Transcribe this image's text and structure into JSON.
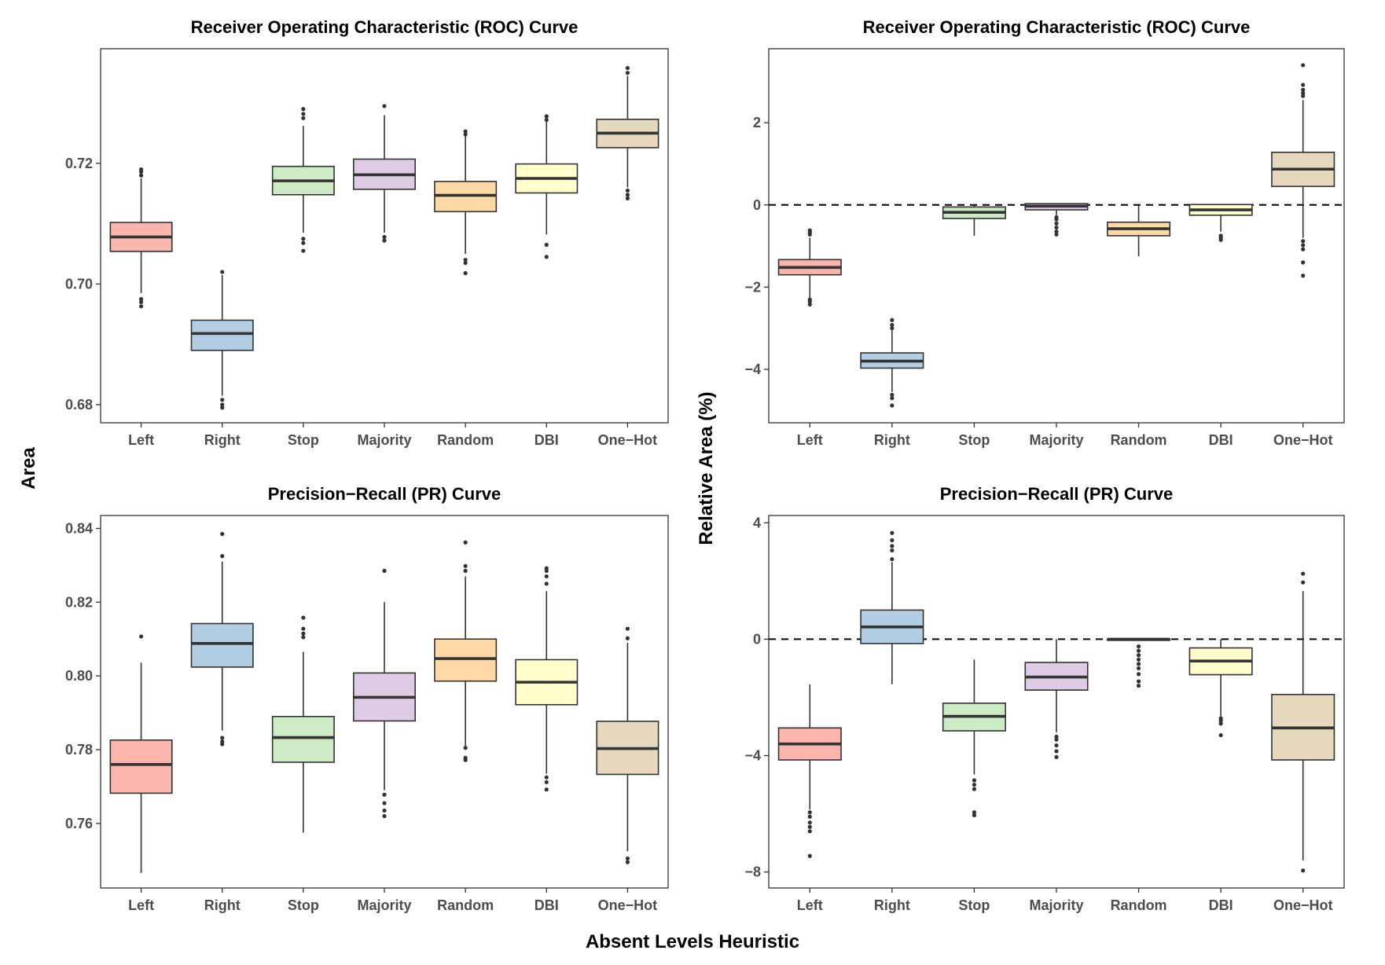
{
  "figure": {
    "ylabel_left": "Area",
    "ylabel_right": "Relative Area (%)",
    "xlabel": "Absent Levels Heuristic"
  },
  "chart_data": [
    {
      "type": "box",
      "title": "Receiver Operating Characteristic (ROC) Curve",
      "categories": [
        "Left",
        "Right",
        "Stop",
        "Majority",
        "Random",
        "DBI",
        "One−Hot"
      ],
      "colors": [
        "#fbb4ae",
        "#b3cde3",
        "#ccebc5",
        "#decbe4",
        "#fed9a6",
        "#ffffcc",
        "#e5d8bd"
      ],
      "ylim": [
        0.677,
        0.739
      ],
      "yticks": [
        0.68,
        0.7,
        0.72
      ],
      "ytick_labels": [
        "0.68",
        "0.70",
        "0.72"
      ],
      "reference_line": null,
      "boxes": [
        {
          "q1": 0.7054,
          "median": 0.7078,
          "q3": 0.7102,
          "whisker_low": 0.6985,
          "whisker_high": 0.7175,
          "outliers": [
            0.6963,
            0.697,
            0.6975,
            0.718,
            0.7186,
            0.719
          ]
        },
        {
          "q1": 0.689,
          "median": 0.6918,
          "q3": 0.694,
          "whisker_low": 0.6815,
          "whisker_high": 0.7015,
          "outliers": [
            0.6795,
            0.68,
            0.6808,
            0.702
          ]
        },
        {
          "q1": 0.7148,
          "median": 0.7171,
          "q3": 0.7195,
          "whisker_low": 0.7085,
          "whisker_high": 0.7262,
          "outliers": [
            0.7055,
            0.7068,
            0.7075,
            0.7275,
            0.7282,
            0.729
          ]
        },
        {
          "q1": 0.7157,
          "median": 0.7181,
          "q3": 0.7207,
          "whisker_low": 0.7085,
          "whisker_high": 0.728,
          "outliers": [
            0.7072,
            0.7078,
            0.7295
          ]
        },
        {
          "q1": 0.712,
          "median": 0.7147,
          "q3": 0.717,
          "whisker_low": 0.705,
          "whisker_high": 0.7245,
          "outliers": [
            0.7018,
            0.7035,
            0.704,
            0.7248,
            0.7253
          ]
        },
        {
          "q1": 0.7151,
          "median": 0.7175,
          "q3": 0.7199,
          "whisker_low": 0.7082,
          "whisker_high": 0.727,
          "outliers": [
            0.7045,
            0.7065,
            0.7272,
            0.7278
          ]
        },
        {
          "q1": 0.7226,
          "median": 0.725,
          "q3": 0.7273,
          "whisker_low": 0.716,
          "whisker_high": 0.7345,
          "outliers": [
            0.7142,
            0.7148,
            0.7155,
            0.735,
            0.7358
          ]
        }
      ]
    },
    {
      "type": "box",
      "title": "Receiver Operating Characteristic (ROC) Curve",
      "categories": [
        "Left",
        "Right",
        "Stop",
        "Majority",
        "Random",
        "DBI",
        "One−Hot"
      ],
      "colors": [
        "#fbb4ae",
        "#b3cde3",
        "#ccebc5",
        "#decbe4",
        "#fed9a6",
        "#ffffcc",
        "#e5d8bd"
      ],
      "ylim": [
        -5.3,
        3.8
      ],
      "yticks": [
        -4,
        -2,
        0,
        2
      ],
      "ytick_labels": [
        "−4",
        "−2",
        "0",
        "2"
      ],
      "reference_line": 0,
      "boxes": [
        {
          "q1": -1.7,
          "median": -1.52,
          "q3": -1.33,
          "whisker_low": -2.25,
          "whisker_high": -0.8,
          "outliers": [
            -2.42,
            -2.35,
            -2.3,
            -0.72,
            -0.67,
            -0.62
          ]
        },
        {
          "q1": -3.97,
          "median": -3.8,
          "q3": -3.6,
          "whisker_low": -4.55,
          "whisker_high": -3.05,
          "outliers": [
            -4.88,
            -4.7,
            -4.62,
            -3.0,
            -2.92,
            -2.8
          ]
        },
        {
          "q1": -0.33,
          "median": -0.18,
          "q3": -0.05,
          "whisker_low": -0.75,
          "whisker_high": 0.0,
          "outliers": []
        },
        {
          "q1": -0.12,
          "median": -0.03,
          "q3": 0.03,
          "whisker_low": -0.25,
          "whisker_high": 0.03,
          "outliers": [
            -0.72,
            -0.65,
            -0.55,
            -0.45,
            -0.35,
            -0.3
          ]
        },
        {
          "q1": -0.75,
          "median": -0.58,
          "q3": -0.42,
          "whisker_low": -1.25,
          "whisker_high": 0.0,
          "outliers": []
        },
        {
          "q1": -0.25,
          "median": -0.12,
          "q3": 0.01,
          "whisker_low": -0.65,
          "whisker_high": 0.01,
          "outliers": [
            -0.85,
            -0.8,
            -0.75
          ]
        },
        {
          "q1": 0.45,
          "median": 0.87,
          "q3": 1.28,
          "whisker_low": -0.8,
          "whisker_high": 2.55,
          "outliers": [
            -1.72,
            -1.4,
            -1.08,
            -0.98,
            -0.88,
            2.65,
            2.72,
            2.8,
            2.92,
            3.4
          ]
        }
      ]
    },
    {
      "type": "box",
      "title": "Precision−Recall (PR) Curve",
      "categories": [
        "Left",
        "Right",
        "Stop",
        "Majority",
        "Random",
        "DBI",
        "One−Hot"
      ],
      "colors": [
        "#fbb4ae",
        "#b3cde3",
        "#ccebc5",
        "#decbe4",
        "#fed9a6",
        "#ffffcc",
        "#e5d8bd"
      ],
      "ylim": [
        0.7425,
        0.8435
      ],
      "yticks": [
        0.76,
        0.78,
        0.8,
        0.82,
        0.84
      ],
      "ytick_labels": [
        "0.76",
        "0.78",
        "0.80",
        "0.82",
        "0.84"
      ],
      "reference_line": null,
      "boxes": [
        {
          "q1": 0.7682,
          "median": 0.776,
          "q3": 0.7826,
          "whisker_low": 0.7466,
          "whisker_high": 0.8036,
          "outliers": [
            0.8107
          ]
        },
        {
          "q1": 0.8024,
          "median": 0.8088,
          "q3": 0.8142,
          "whisker_low": 0.7852,
          "whisker_high": 0.831,
          "outliers": [
            0.7815,
            0.7822,
            0.7832,
            0.8325,
            0.8385
          ]
        },
        {
          "q1": 0.7766,
          "median": 0.7833,
          "q3": 0.789,
          "whisker_low": 0.7575,
          "whisker_high": 0.8065,
          "outliers": [
            0.8105,
            0.8115,
            0.8128,
            0.8158
          ]
        },
        {
          "q1": 0.7878,
          "median": 0.7942,
          "q3": 0.8008,
          "whisker_low": 0.769,
          "whisker_high": 0.82,
          "outliers": [
            0.762,
            0.7635,
            0.7655,
            0.7678,
            0.8285
          ]
        },
        {
          "q1": 0.7986,
          "median": 0.8047,
          "q3": 0.81,
          "whisker_low": 0.781,
          "whisker_high": 0.827,
          "outliers": [
            0.7772,
            0.7778,
            0.7805,
            0.8285,
            0.8298,
            0.8362
          ]
        },
        {
          "q1": 0.7922,
          "median": 0.7983,
          "q3": 0.8044,
          "whisker_low": 0.7735,
          "whisker_high": 0.823,
          "outliers": [
            0.7692,
            0.7712,
            0.7725,
            0.825,
            0.827,
            0.8285,
            0.8292
          ]
        },
        {
          "q1": 0.7733,
          "median": 0.7803,
          "q3": 0.7877,
          "whisker_low": 0.7525,
          "whisker_high": 0.809,
          "outliers": [
            0.7495,
            0.7505,
            0.8102,
            0.8128
          ]
        }
      ]
    },
    {
      "type": "box",
      "title": "Precision−Recall (PR) Curve",
      "categories": [
        "Left",
        "Right",
        "Stop",
        "Majority",
        "Random",
        "DBI",
        "One−Hot"
      ],
      "colors": [
        "#fbb4ae",
        "#b3cde3",
        "#ccebc5",
        "#decbe4",
        "#fed9a6",
        "#ffffcc",
        "#e5d8bd"
      ],
      "ylim": [
        -8.55,
        4.25
      ],
      "yticks": [
        -8,
        -4,
        0,
        4
      ],
      "ytick_labels": [
        "−8",
        "−4",
        "0",
        "4"
      ],
      "reference_line": 0,
      "boxes": [
        {
          "q1": -4.15,
          "median": -3.6,
          "q3": -3.05,
          "whisker_low": -5.85,
          "whisker_high": -1.55,
          "outliers": [
            -7.45,
            -6.6,
            -6.45,
            -6.3,
            -6.1,
            -5.95
          ]
        },
        {
          "q1": -0.15,
          "median": 0.42,
          "q3": 1.0,
          "whisker_low": -1.55,
          "whisker_high": 2.65,
          "outliers": [
            2.75,
            3.05,
            3.2,
            3.4,
            3.65
          ]
        },
        {
          "q1": -3.15,
          "median": -2.65,
          "q3": -2.2,
          "whisker_low": -4.65,
          "whisker_high": -0.7,
          "outliers": [
            -6.05,
            -5.95,
            -5.15,
            -5.0,
            -4.85
          ]
        },
        {
          "q1": -1.75,
          "median": -1.3,
          "q3": -0.8,
          "whisker_low": -3.2,
          "whisker_high": 0.0,
          "outliers": [
            -4.05,
            -3.85,
            -3.65,
            -3.45,
            -3.35
          ]
        },
        {
          "q1": 0.0,
          "median": 0.0,
          "q3": 0.0,
          "whisker_low": 0.0,
          "whisker_high": 0.0,
          "outliers": [
            -1.6,
            -1.45,
            -1.2,
            -1.0,
            -0.85,
            -0.7,
            -0.55,
            -0.4,
            -0.25
          ]
        },
        {
          "q1": -1.22,
          "median": -0.75,
          "q3": -0.3,
          "whisker_low": -2.65,
          "whisker_high": 0.0,
          "outliers": [
            -3.3,
            -2.9,
            -2.8,
            -2.72
          ]
        },
        {
          "q1": -4.15,
          "median": -3.05,
          "q3": -1.9,
          "whisker_low": -7.6,
          "whisker_high": 1.65,
          "outliers": [
            -7.95,
            1.95,
            2.25
          ]
        }
      ]
    }
  ]
}
